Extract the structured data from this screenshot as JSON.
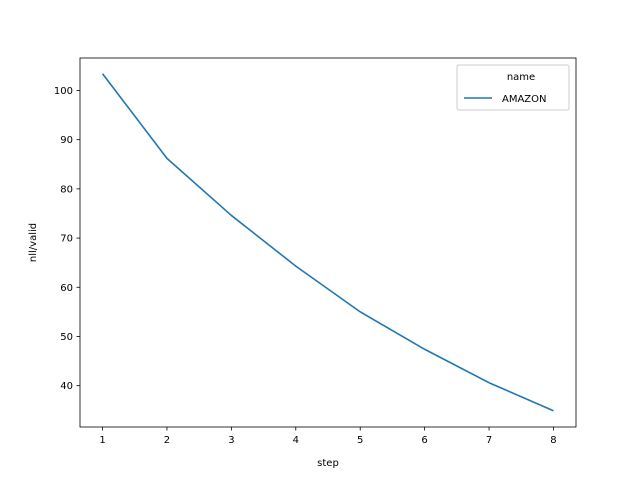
{
  "chart_data": {
    "type": "line",
    "title": "",
    "xlabel": "step",
    "ylabel": "nll/valid",
    "xlim": [
      0.65,
      8.35
    ],
    "ylim": [
      31.6,
      106.6
    ],
    "x_ticks": [
      1,
      2,
      3,
      4,
      5,
      6,
      7,
      8
    ],
    "y_ticks": [
      40,
      50,
      60,
      70,
      80,
      90,
      100
    ],
    "grid": false,
    "legend": {
      "title": "name",
      "placement": "top-right"
    },
    "series": [
      {
        "name": "AMAZON",
        "color": "#1f77b4",
        "x": [
          1,
          2,
          3,
          4,
          5,
          6,
          7,
          8
        ],
        "values": [
          103.4,
          86.2,
          74.6,
          64.3,
          55.0,
          47.4,
          40.6,
          34.9
        ]
      }
    ]
  }
}
